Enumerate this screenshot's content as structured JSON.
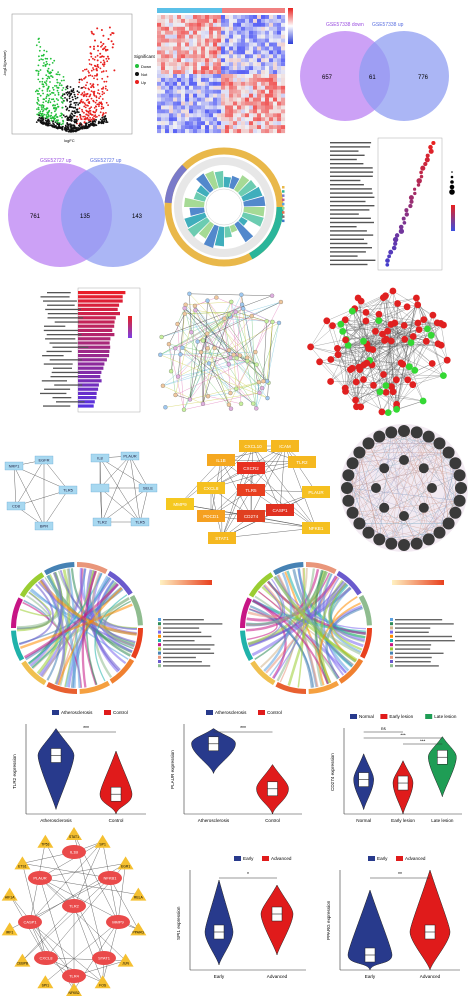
{
  "venn1": {
    "left_title": "GSE57338 down",
    "right_title": "GSE57338 up",
    "left": "657",
    "center": "61",
    "right": "776"
  },
  "venn2": {
    "left_title": "GSE52727 up",
    "right_title": "GSE52727 up",
    "left": "761",
    "center": "135",
    "right": "143"
  },
  "volcano": {
    "ylabel": "-log10(pvalue)",
    "xlabel": "logFC",
    "legend_title": "Significant",
    "legend": [
      "Down",
      "Not",
      "Up"
    ]
  },
  "ppi_small": {
    "nodes_a": [
      "NRP1",
      "EGFR",
      "TLR5",
      "BPR",
      "CD8"
    ],
    "nodes_b": [
      "IL8",
      "PLAUR",
      "SELE",
      "TLR5",
      "TLR2"
    ]
  },
  "hub": {
    "nodes": [
      "CXCL10",
      "ICAM",
      "IL1B",
      "CXCR2",
      "TLR2",
      "TLR5",
      "CXCL8",
      "MMP9",
      "PLAUR",
      "CASP1",
      "PDCD1",
      "CD274",
      "NFKB1",
      "STAT1"
    ]
  },
  "violin1": {
    "legend": [
      "Atherosclerosis",
      "Control"
    ],
    "ylabel": "TLR2 expression",
    "categories": [
      "Atherosclerosis",
      "Control"
    ],
    "sig": "***"
  },
  "violin2": {
    "legend": [
      "Atherosclerosis",
      "Control"
    ],
    "ylabel": "PLAUR expression",
    "categories": [
      "Atherosclerosis",
      "Control"
    ],
    "sig": "***"
  },
  "violin3": {
    "legend": [
      "Normal",
      "Early lesion",
      "Late lesion"
    ],
    "ylabel": "CD274 expression",
    "categories": [
      "Normal",
      "Early lesion",
      "Late lesion"
    ],
    "sig": [
      "ns",
      "***",
      "***"
    ]
  },
  "violin4": {
    "legend": [
      "Early",
      "Advanced"
    ],
    "ylabel": "SPI1 expression",
    "categories": [
      "Early",
      "Advanced"
    ],
    "sig": "*"
  },
  "violin5": {
    "legend": [
      "Early",
      "Advanced"
    ],
    "ylabel": "PPARG expression",
    "categories": [
      "Early",
      "Advanced"
    ],
    "sig": "**"
  },
  "tf_net": {
    "hubs": [
      "IL1B",
      "PLAUR",
      "NFKB1",
      "CASP1",
      "MMP9",
      "CXCL8",
      "STAT1",
      "TLR2",
      "TLR4"
    ],
    "tfs": [
      "STAT1",
      "SP1",
      "EGR1",
      "RELA",
      "PPARG",
      "JUN",
      "FOS",
      "NFKB2",
      "SPI1",
      "CEBPB",
      "IRF1",
      "HIF1A",
      "ETS1",
      "TP53"
    ]
  },
  "colors": {
    "down": "#22c03a",
    "up": "#e8201e",
    "not": "#111111",
    "navy": "#283a8c",
    "red": "#e01b1b",
    "green": "#1f9d55",
    "purple": "#c390f5",
    "blue": "#8f9ef2"
  }
}
